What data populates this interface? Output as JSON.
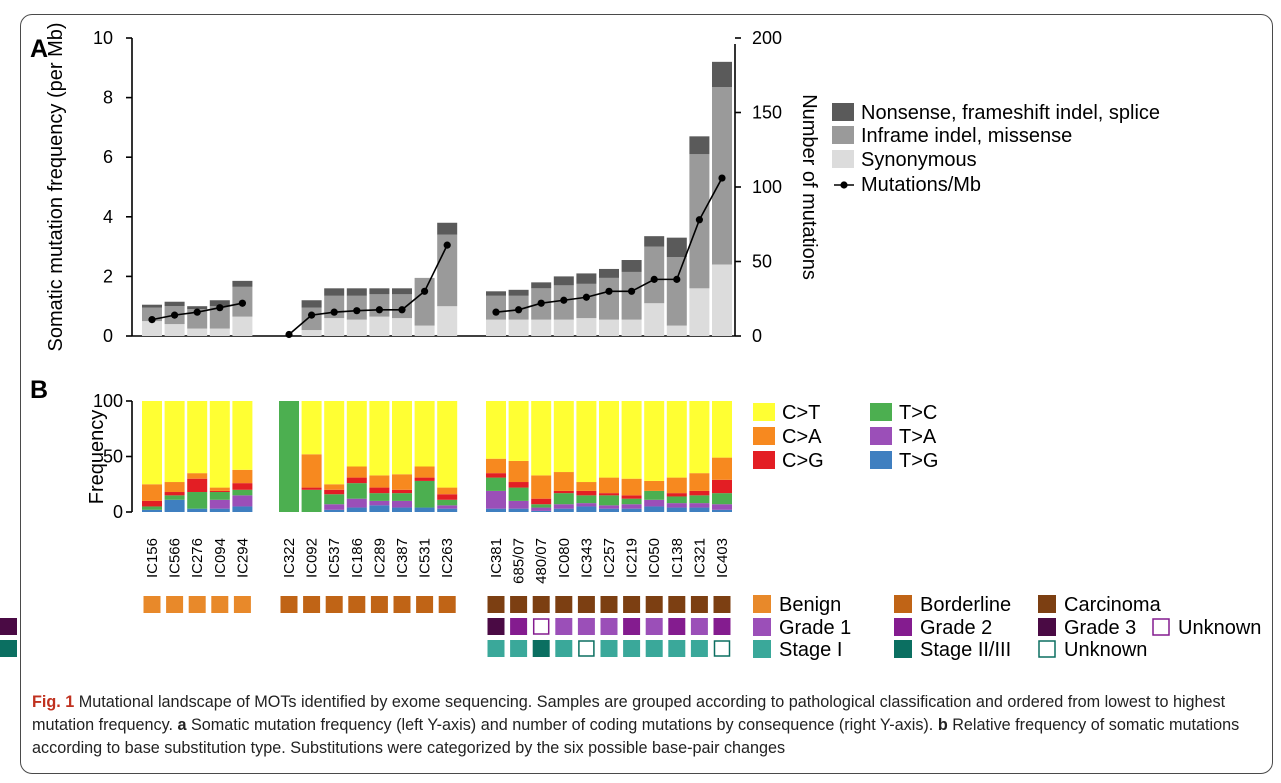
{
  "panel_labels": {
    "a": "A",
    "b": "B"
  },
  "chart_data": [
    {
      "type": "bar",
      "panel": "A",
      "stacked": true,
      "categories": [
        "IC156",
        "IC566",
        "IC276",
        "IC094",
        "IC294",
        "IC322",
        "IC092",
        "IC537",
        "IC186",
        "IC289",
        "IC387",
        "IC531",
        "IC263",
        "IC381",
        "685/07",
        "480/07",
        "IC080",
        "IC343",
        "IC257",
        "IC219",
        "IC050",
        "IC138",
        "IC321",
        "IC403"
      ],
      "groups": [
        5,
        8,
        11
      ],
      "ylabel": "Somatic mutation frequency (per Mb)",
      "y2label": "Number of mutations",
      "ylim": [
        0,
        10
      ],
      "y2lim": [
        0,
        200
      ],
      "yticks": [
        "0",
        "2",
        "4",
        "6",
        "8",
        "10"
      ],
      "y2ticks": [
        "0",
        "50",
        "100",
        "150",
        "200"
      ],
      "legend_position": "right",
      "series": [
        {
          "name": "Synonymous",
          "color": "#dcdcdc",
          "axis": "right",
          "values": [
            10,
            8,
            5,
            5,
            13,
            0,
            4,
            12,
            11,
            13,
            12,
            7,
            20,
            11,
            11,
            11,
            11,
            12,
            11,
            11,
            22,
            7,
            32,
            48
          ]
        },
        {
          "name": "Inframe indel, missense",
          "color": "#9a9a9a",
          "axis": "right",
          "values": [
            9,
            12,
            13,
            15,
            20,
            0,
            15,
            15,
            16,
            15,
            16,
            32,
            48,
            16,
            16,
            21,
            23,
            23,
            28,
            32,
            38,
            46,
            90,
            119
          ]
        },
        {
          "name": "Nonsense, frameshift indel, splice",
          "color": "#5a5a5a",
          "axis": "right",
          "values": [
            2,
            3,
            2,
            4,
            4,
            0,
            5,
            5,
            5,
            4,
            4,
            0,
            8,
            3,
            4,
            4,
            6,
            7,
            6,
            8,
            7,
            13,
            12,
            17
          ]
        },
        {
          "name": "Mutations/Mb",
          "type": "line",
          "color": "#000000",
          "axis": "left",
          "values": [
            0.55,
            0.7,
            0.8,
            0.95,
            1.1,
            0.05,
            0.7,
            0.8,
            0.85,
            0.88,
            0.88,
            1.5,
            3.05,
            0.8,
            0.88,
            1.1,
            1.2,
            1.3,
            1.5,
            1.5,
            1.9,
            1.9,
            3.9,
            5.3
          ]
        }
      ]
    },
    {
      "type": "bar",
      "panel": "B",
      "stacked": true,
      "ylabel": "Frequency",
      "ylim": [
        0,
        100
      ],
      "yticks": [
        "0",
        "50",
        "100"
      ],
      "legend_position": "right",
      "series": [
        {
          "name": "T>G",
          "color": "#3f7fc0",
          "values": [
            2,
            11,
            3,
            3,
            5,
            0,
            0,
            2,
            4,
            6,
            4,
            4,
            3,
            3,
            3,
            1,
            3,
            5,
            3,
            3,
            5,
            4,
            4,
            2
          ]
        },
        {
          "name": "T>A",
          "color": "#9b4fb8",
          "values": [
            0,
            0,
            0,
            8,
            10,
            0,
            0,
            5,
            8,
            4,
            6,
            0,
            3,
            16,
            7,
            3,
            4,
            3,
            3,
            4,
            6,
            4,
            4,
            5
          ]
        },
        {
          "name": "T>C",
          "color": "#4caf50",
          "values": [
            3,
            4,
            15,
            7,
            5,
            100,
            20,
            9,
            14,
            7,
            7,
            24,
            5,
            12,
            12,
            3,
            10,
            7,
            9,
            5,
            8,
            6,
            7,
            10
          ]
        },
        {
          "name": "C>G",
          "color": "#e31e24",
          "values": [
            5,
            3,
            12,
            1,
            6,
            0,
            2,
            4,
            5,
            5,
            3,
            3,
            5,
            4,
            5,
            5,
            2,
            4,
            2,
            3,
            0,
            3,
            4,
            12
          ]
        },
        {
          "name": "C>A",
          "color": "#f7891f",
          "values": [
            15,
            9,
            5,
            3,
            12,
            0,
            30,
            5,
            10,
            11,
            14,
            10,
            6,
            13,
            19,
            21,
            17,
            8,
            14,
            15,
            9,
            14,
            16,
            20
          ]
        },
        {
          "name": "C>T",
          "color": "#ffff33",
          "values": [
            75,
            73,
            65,
            78,
            62,
            0,
            48,
            75,
            59,
            67,
            66,
            59,
            78,
            52,
            54,
            67,
            64,
            73,
            69,
            70,
            72,
            69,
            65,
            51
          ]
        }
      ]
    }
  ],
  "tracks": {
    "classification": {
      "values": [
        "Benign",
        "Benign",
        "Benign",
        "Benign",
        "Benign",
        "Borderline",
        "Borderline",
        "Borderline",
        "Borderline",
        "Borderline",
        "Borderline",
        "Borderline",
        "Borderline",
        "Carcinoma",
        "Carcinoma",
        "Carcinoma",
        "Carcinoma",
        "Carcinoma",
        "Carcinoma",
        "Carcinoma",
        "Carcinoma",
        "Carcinoma",
        "Carcinoma",
        "Carcinoma"
      ],
      "colors": {
        "Benign": "#e8892a",
        "Borderline": "#c06416",
        "Carcinoma": "#7c3f12"
      }
    },
    "grade": {
      "values": [
        "Grade 3",
        "Grade 2",
        "Unknown",
        "Grade 1",
        "Grade 1",
        "Grade 1",
        "Grade 2",
        "Grade 1",
        "Grade 2",
        "Grade 1",
        "Grade 2",
        "Grade 3"
      ],
      "colors": {
        "Grade 1": "#9b4fb8",
        "Grade 2": "#841c8f",
        "Grade 3": "#4a0a44",
        "Unknown": "none"
      },
      "unknown_stroke": "#841c8f"
    },
    "stage": {
      "values": [
        "Stage I",
        "Stage I",
        "Stage II/III",
        "Stage I",
        "Unknown",
        "Stage I",
        "Stage I",
        "Stage I",
        "Stage I",
        "Stage I",
        "Unknown",
        "Stage II/III"
      ],
      "colors": {
        "Stage I": "#3aa89a",
        "Stage II/III": "#0b6f61",
        "Unknown": "none"
      },
      "unknown_stroke": "#0b6f61"
    }
  },
  "track_legend": {
    "classification": [
      "Benign",
      "Borderline",
      "Carcinoma"
    ],
    "grade": [
      "Grade 1",
      "Grade 2",
      "Grade 3",
      "Unknown"
    ],
    "stage": [
      "Stage I",
      "Stage II/III",
      "Unknown"
    ]
  },
  "caption": {
    "figlabel": "Fig. 1",
    "intro": " Mutational landscape of MOTs identified by exome sequencing. Samples are grouped according to pathological classification and ordered from lowest to highest mutation frequency. ",
    "a_label": "a",
    "a_text": " Somatic mutation frequency (left Y-axis) and number of coding mutations by consequence (right Y-axis). ",
    "b_label": "b",
    "b_text": " Relative frequency of somatic mutations according to base substitution type. Substitutions were categorized by the six possible base-pair changes"
  }
}
